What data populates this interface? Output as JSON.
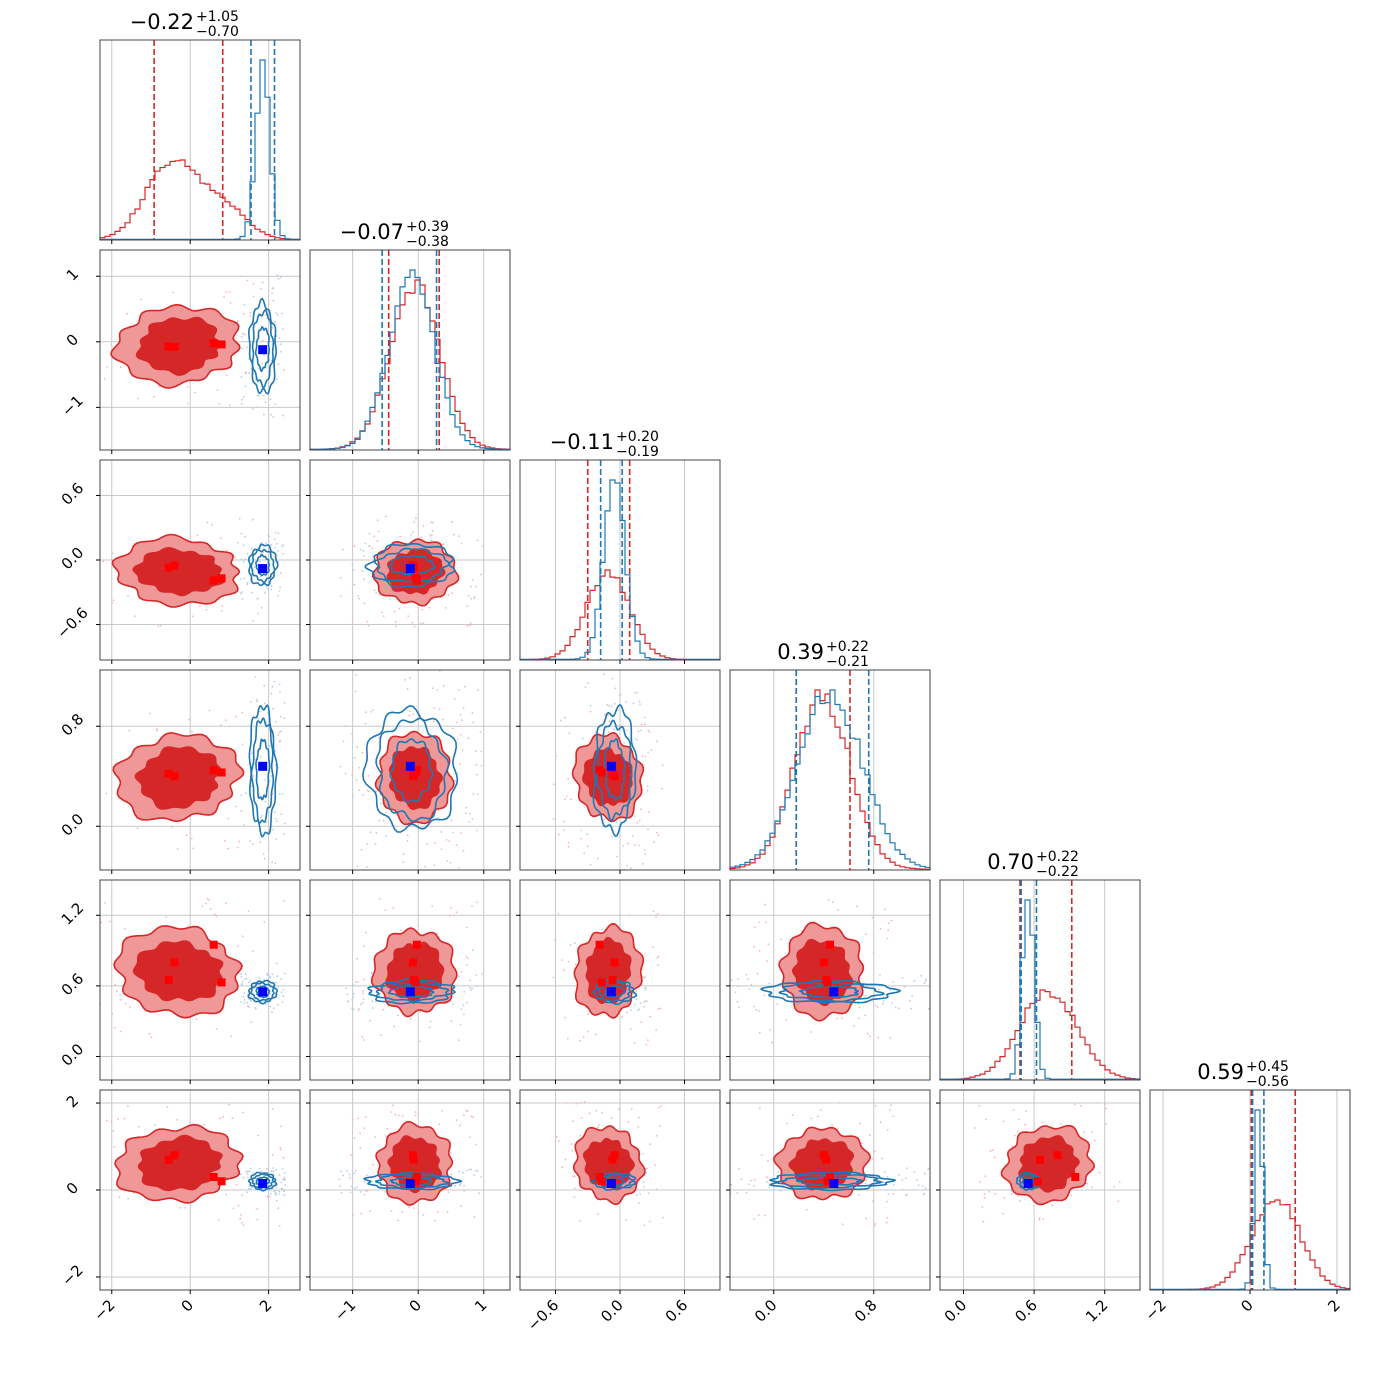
{
  "colors": {
    "red": "#d62728",
    "blue": "#1f77b4",
    "red_fill_outer": "#f09898",
    "red_fill_inner": "#d62728",
    "blue_marker": "#0000ff",
    "red_marker": "#ff0000",
    "grid": "#c8c8c8"
  },
  "chart_data": {
    "type": "corner",
    "n_params": 6,
    "titles": [
      {
        "value": "−0.22",
        "plus": "+1.05",
        "minus": "−0.70"
      },
      {
        "value": "−0.07",
        "plus": "+0.39",
        "minus": "−0.38"
      },
      {
        "value": "−0.11",
        "plus": "+0.20",
        "minus": "−0.19"
      },
      {
        "value": "0.39",
        "plus": "+0.22",
        "minus": "−0.21"
      },
      {
        "value": "0.70",
        "plus": "+0.22",
        "minus": "−0.22"
      },
      {
        "value": "0.59",
        "plus": "+0.45",
        "minus": "−0.56"
      }
    ],
    "ranges": [
      [
        -2.3,
        2.8
      ],
      [
        -1.65,
        1.4
      ],
      [
        -0.93,
        0.93
      ],
      [
        -0.35,
        1.25
      ],
      [
        -0.2,
        1.5
      ],
      [
        -2.3,
        2.3
      ]
    ],
    "ticks": [
      {
        "values": [
          -2,
          0,
          2
        ],
        "labels": [
          "−2",
          "0",
          "2"
        ]
      },
      {
        "values": [
          -1,
          0,
          1
        ],
        "labels": [
          "−1",
          "0",
          "1"
        ]
      },
      {
        "values": [
          -0.6,
          0.0,
          0.6
        ],
        "labels": [
          "−0.6",
          "0.0",
          "0.6"
        ]
      },
      {
        "values": [
          0.0,
          0.8
        ],
        "labels": [
          "0.0",
          "0.8"
        ]
      },
      {
        "values": [
          0.0,
          0.6,
          1.2
        ],
        "labels": [
          "0.0",
          "0.6",
          "1.2"
        ]
      },
      {
        "values": [
          -2,
          0,
          2
        ],
        "labels": [
          "−2",
          "0",
          "2"
        ]
      }
    ],
    "series": [
      {
        "color": "red",
        "centers": [
          -0.2,
          -0.05,
          -0.11,
          0.39,
          0.72,
          0.6
        ],
        "sigmas": [
          1.0,
          0.38,
          0.2,
          0.22,
          0.24,
          0.55
        ],
        "quantiles": [
          [
            -0.92,
            0.83
          ],
          [
            -0.45,
            0.32
          ],
          [
            -0.3,
            0.09
          ],
          [
            0.18,
            0.61
          ],
          [
            0.48,
            0.92
          ],
          [
            0.03,
            1.04
          ]
        ]
      },
      {
        "color": "blue",
        "centers": [
          1.85,
          -0.1,
          -0.05,
          0.45,
          0.55,
          0.2
        ],
        "sigmas": [
          0.18,
          0.35,
          0.1,
          0.26,
          0.05,
          0.1
        ],
        "quantiles": [
          [
            1.55,
            2.15
          ],
          [
            -0.55,
            0.28
          ],
          [
            -0.18,
            0.02
          ],
          [
            0.18,
            0.76
          ],
          [
            0.49,
            0.62
          ],
          [
            0.06,
            0.32
          ]
        ]
      }
    ],
    "markers": {
      "blue": [
        1.85,
        -0.12,
        -0.08,
        0.48,
        0.55,
        0.15
      ],
      "red": [
        [
          -0.55,
          -0.07,
          -0.07,
          0.42,
          0.65,
          0.7
        ],
        [
          -0.4,
          -0.08,
          -0.05,
          0.4,
          0.8,
          0.8
        ],
        [
          0.6,
          -0.02,
          -0.19,
          0.45,
          0.95,
          0.3
        ],
        [
          0.8,
          -0.04,
          -0.17,
          0.43,
          0.63,
          0.2
        ]
      ]
    }
  }
}
